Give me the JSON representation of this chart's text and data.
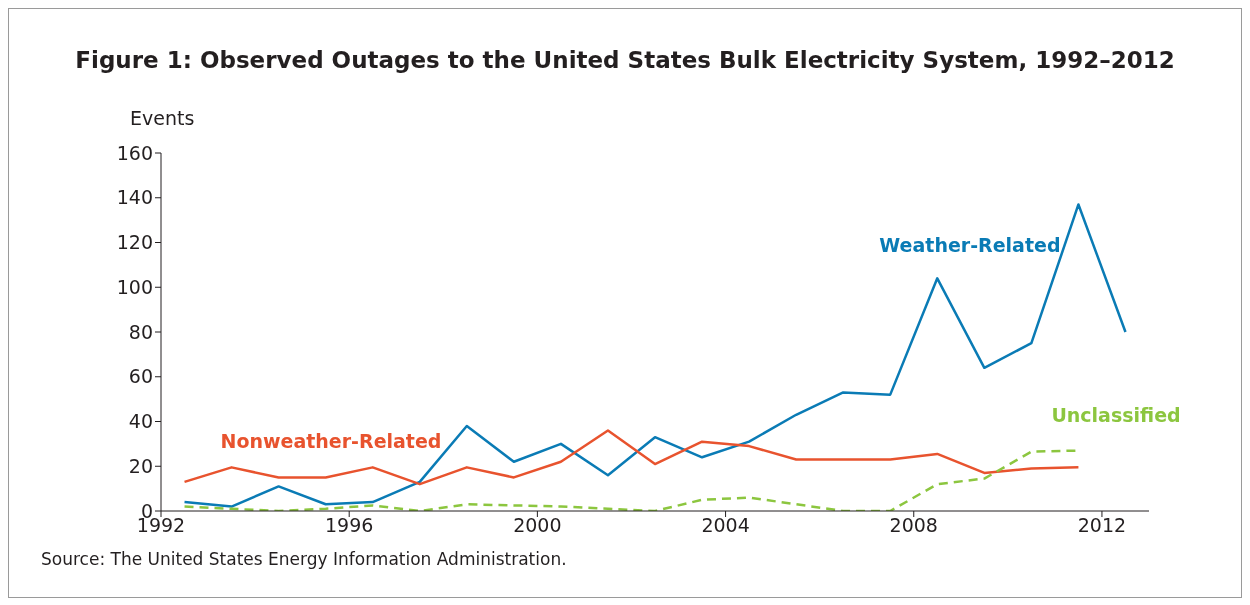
{
  "chart_data": {
    "type": "line",
    "title": "Figure 1: Observed Outages to the United States Bulk Electricity System, 1992–2012",
    "ylabel": "Events",
    "x": [
      1992.5,
      1993.5,
      1994.5,
      1995.5,
      1996.5,
      1997.5,
      1998.5,
      1999.5,
      2000.5,
      2001.5,
      2002.5,
      2003.5,
      2004.5,
      2005.5,
      2006.5,
      2007.5,
      2008.5,
      2009.5,
      2010.5,
      2011.5,
      2012.5
    ],
    "series": [
      {
        "name": "Weather-Related",
        "color": "#0a7bb5",
        "values": [
          4,
          2,
          11,
          3,
          4,
          13,
          38,
          22,
          30,
          16,
          33,
          24,
          31,
          43,
          53,
          52,
          104,
          64,
          75,
          137,
          80
        ]
      },
      {
        "name": "Nonweather-Related",
        "color": "#e8532e",
        "values": [
          13,
          19.5,
          15,
          15,
          19.5,
          12,
          19.5,
          15,
          22,
          36,
          21,
          31,
          29,
          23,
          23,
          23,
          25.5,
          17,
          19,
          19.5,
          null
        ]
      },
      {
        "name": "Unclassified",
        "color": "#8cc63f",
        "line_style": "dashed",
        "values": [
          2,
          1,
          0,
          1,
          2.5,
          0,
          3,
          2.5,
          2,
          1,
          0,
          5,
          6,
          3,
          0,
          0,
          12,
          14.5,
          26.5,
          27,
          null
        ]
      }
    ],
    "xlim": [
      1992,
      2013
    ],
    "xticks": [
      1992,
      1996,
      2000,
      2004,
      2008,
      2012
    ],
    "ylim": [
      0,
      160
    ],
    "yticks": [
      0,
      20,
      40,
      60,
      80,
      100,
      120,
      140,
      160
    ],
    "grid": false,
    "legend": false,
    "marker": "none",
    "line_style": "solid",
    "annotations": [
      "Source: The United States Energy Information Administration."
    ]
  }
}
